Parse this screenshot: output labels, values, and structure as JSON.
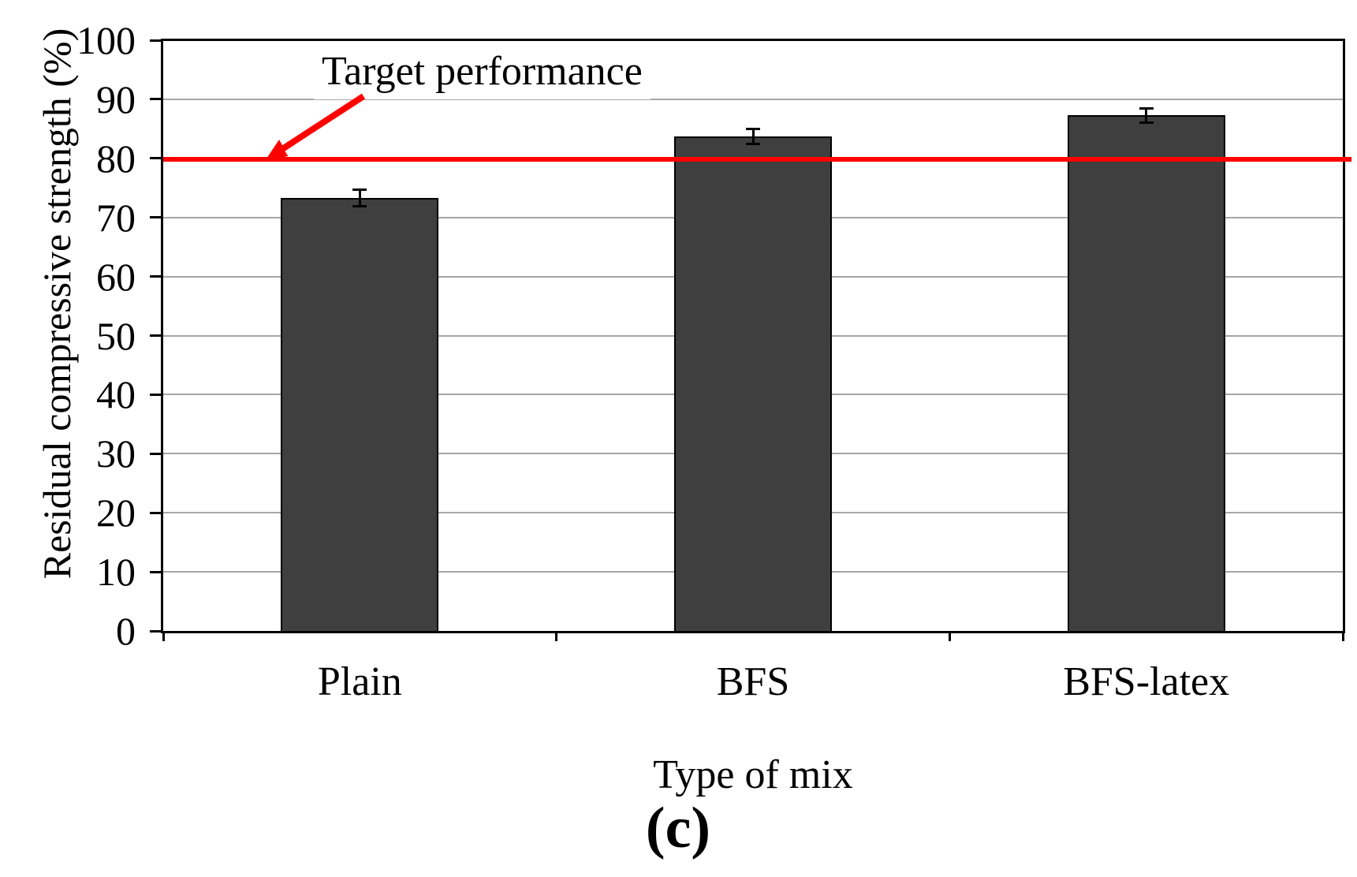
{
  "chart_data": {
    "type": "bar",
    "categories": [
      "Plain",
      "BFS",
      "BFS-latex"
    ],
    "values": [
      73.3,
      83.7,
      87.3
    ],
    "errors": [
      1.4,
      1.3,
      1.2
    ],
    "xlabel": "Type of mix",
    "ylabel": "Residual compressive strength (%)",
    "ylim": [
      0,
      100
    ],
    "yticks": [
      0,
      10,
      20,
      30,
      40,
      50,
      60,
      70,
      80,
      90,
      100
    ],
    "grid": "horizontal",
    "legend": "none",
    "bar_color": "#3f3f3f",
    "gridline_color": "#a6a6a6",
    "target_line": {
      "value": 80,
      "color": "#ff0000",
      "label": "Target performance"
    },
    "caption": "(c)"
  }
}
